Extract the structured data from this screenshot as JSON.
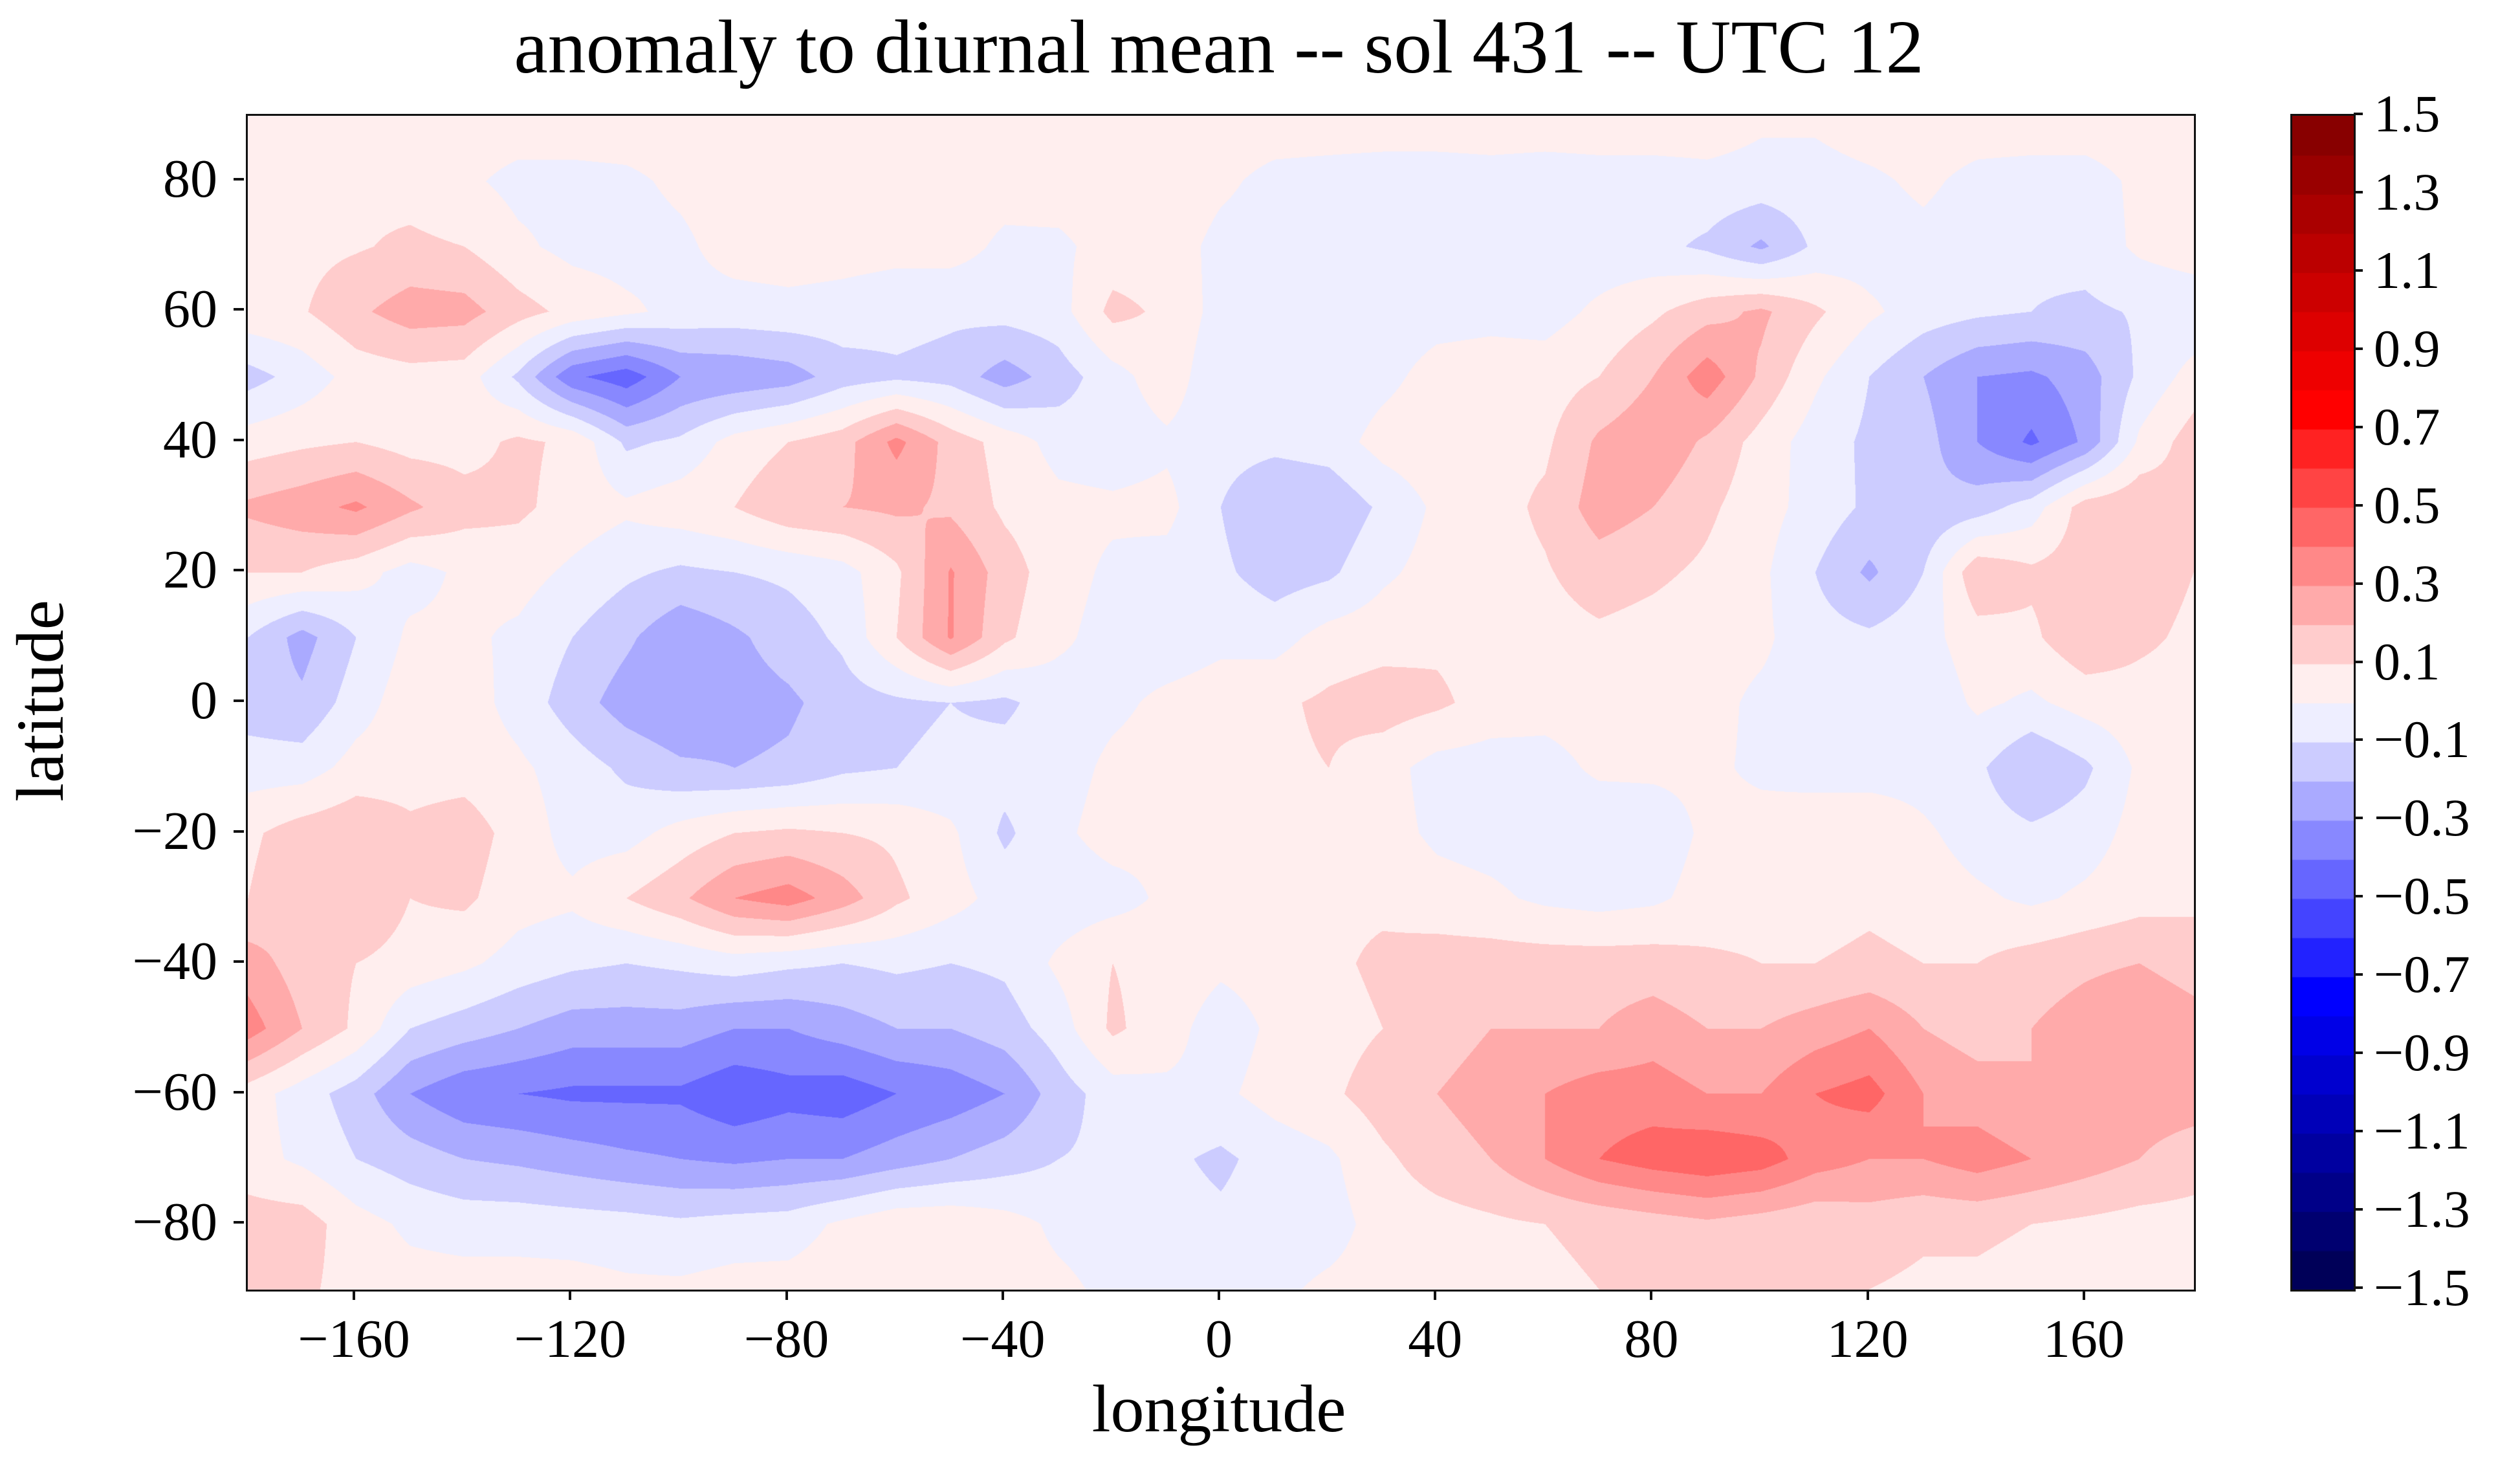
{
  "title": "anomaly to diurnal mean -- sol 431 -- UTC 12",
  "axes": {
    "xlabel": "longitude",
    "ylabel": "latitude",
    "xlim": [
      -180,
      180
    ],
    "ylim": [
      -90,
      90
    ],
    "x_tick_values": [
      -160,
      -120,
      -80,
      -40,
      0,
      40,
      80,
      120,
      160
    ],
    "x_tick_labels": [
      "−160",
      "−120",
      "−80",
      "−40",
      "0",
      "40",
      "80",
      "120",
      "160"
    ],
    "y_tick_values": [
      80,
      60,
      40,
      20,
      0,
      -20,
      -40,
      -60,
      -80
    ],
    "y_tick_labels": [
      "80",
      "60",
      "40",
      "20",
      "0",
      "−20",
      "−40",
      "−60",
      "−80"
    ]
  },
  "colorbar": {
    "orientation": "vertical",
    "position": "right",
    "min": -1.5,
    "max": 1.5,
    "band_step": 0.1,
    "colormap": "seismic",
    "tick_values": [
      1.5,
      1.3,
      1.1,
      0.9,
      0.7,
      0.5,
      0.3,
      0.1,
      -0.1,
      -0.3,
      -0.5,
      -0.7,
      -0.9,
      -1.1,
      -1.3,
      -1.5
    ],
    "tick_labels": [
      "1.5",
      "1.3",
      "1.1",
      "0.9",
      "0.7",
      "0.5",
      "0.3",
      "0.1",
      "−0.1",
      "−0.3",
      "−0.5",
      "−0.7",
      "−0.9",
      "−1.1",
      "−1.3",
      "−1.5"
    ],
    "top_color": "#880000",
    "mid_color": "#ffffff",
    "bottom_color": "#00004d"
  },
  "chart_data": {
    "type": "heatmap",
    "subtype": "filled-contour",
    "title": "anomaly to diurnal mean -- sol 431 -- UTC 12",
    "xlabel": "longitude",
    "ylabel": "latitude",
    "xlim": [
      -180,
      180
    ],
    "ylim": [
      -90,
      90
    ],
    "grid": false,
    "legend_position": "right-colorbar",
    "colormap": "seismic",
    "levels": {
      "min": -1.5,
      "max": 1.5,
      "step": 0.1
    },
    "x": [
      -180,
      -170,
      -160,
      -150,
      -140,
      -130,
      -120,
      -110,
      -100,
      -90,
      -80,
      -70,
      -60,
      -50,
      -40,
      -30,
      -20,
      -10,
      0,
      10,
      20,
      30,
      40,
      50,
      60,
      70,
      80,
      90,
      100,
      110,
      120,
      130,
      140,
      150,
      160,
      170,
      180
    ],
    "y": [
      90,
      80,
      70,
      60,
      50,
      40,
      30,
      20,
      10,
      0,
      -10,
      -20,
      -30,
      -40,
      -50,
      -60,
      -70,
      -80,
      -90
    ],
    "values": [
      [
        0.06,
        0.06,
        0.06,
        0.06,
        0.06,
        0.06,
        0.06,
        0.06,
        0.06,
        0.06,
        0.06,
        0.06,
        0.06,
        0.06,
        0.06,
        0.06,
        0.06,
        0.06,
        0.06,
        0.06,
        0.06,
        0.06,
        0.06,
        0.06,
        0.06,
        0.06,
        0.06,
        0.06,
        0.02,
        0.02,
        0.06,
        0.06,
        0.06,
        0.06,
        0.06,
        0.06,
        0.06
      ],
      [
        0.07,
        0.07,
        0.08,
        0.06,
        0.02,
        -0.03,
        -0.03,
        -0.02,
        0.02,
        0.05,
        0.06,
        0.05,
        0.05,
        0.06,
        0.04,
        0.05,
        0.06,
        0.07,
        0.02,
        -0.03,
        -0.04,
        -0.05,
        -0.05,
        -0.04,
        -0.05,
        -0.04,
        -0.04,
        -0.03,
        -0.04,
        -0.04,
        -0.02,
        0.02,
        -0.03,
        -0.04,
        -0.04,
        0.02,
        0.07
      ],
      [
        0.06,
        0.07,
        0.09,
        0.12,
        0.1,
        0.02,
        -0.03,
        -0.04,
        -0.02,
        0.04,
        0.05,
        0.04,
        0.03,
        0.04,
        -0.02,
        -0.02,
        0.04,
        0.05,
        -0.03,
        -0.05,
        -0.05,
        -0.06,
        -0.05,
        -0.06,
        -0.05,
        -0.06,
        -0.07,
        -0.12,
        -0.22,
        -0.08,
        -0.05,
        -0.03,
        -0.06,
        -0.08,
        -0.06,
        0.02,
        0.06
      ],
      [
        0.07,
        0.09,
        0.18,
        0.25,
        0.24,
        0.14,
        0.07,
        0.02,
        -0.03,
        -0.04,
        -0.03,
        -0.04,
        -0.06,
        -0.08,
        -0.06,
        -0.04,
        0.13,
        0.08,
        -0.04,
        -0.09,
        -0.1,
        -0.06,
        -0.04,
        -0.03,
        -0.04,
        0.02,
        0.08,
        0.16,
        0.22,
        0.12,
        0.02,
        -0.05,
        -0.08,
        -0.1,
        -0.12,
        -0.09,
        -0.08
      ],
      [
        -0.14,
        -0.06,
        0.04,
        0.06,
        0.05,
        -0.12,
        -0.38,
        -0.46,
        -0.3,
        -0.28,
        -0.25,
        -0.15,
        -0.12,
        -0.14,
        -0.25,
        -0.15,
        -0.04,
        0.06,
        -0.08,
        -0.1,
        -0.08,
        -0.03,
        0.04,
        0.05,
        0.05,
        0.1,
        0.2,
        0.36,
        0.18,
        0.02,
        -0.1,
        -0.2,
        -0.3,
        -0.32,
        -0.25,
        -0.08,
        0.04
      ],
      [
        0.05,
        0.08,
        0.1,
        0.06,
        0.06,
        0.12,
        0.08,
        -0.12,
        -0.08,
        0.04,
        0.1,
        0.16,
        0.33,
        0.16,
        0.06,
        -0.04,
        -0.06,
        -0.02,
        -0.06,
        -0.07,
        -0.05,
        0.04,
        0.07,
        0.07,
        0.08,
        0.22,
        0.28,
        0.18,
        0.06,
        -0.05,
        -0.12,
        -0.16,
        -0.3,
        -0.42,
        -0.28,
        0.02,
        0.15
      ],
      [
        0.22,
        0.26,
        0.32,
        0.22,
        0.14,
        0.12,
        0.06,
        0.02,
        0.06,
        0.1,
        0.18,
        0.2,
        0.22,
        0.18,
        0.08,
        0.03,
        0.02,
        0.03,
        -0.1,
        -0.2,
        -0.18,
        -0.08,
        0.02,
        0.06,
        0.12,
        0.25,
        0.2,
        0.12,
        0.04,
        -0.04,
        -0.12,
        -0.18,
        -0.15,
        -0.05,
        0.15,
        0.18,
        0.12
      ],
      [
        0.1,
        0.1,
        0.04,
        -0.04,
        0.02,
        0.04,
        -0.02,
        -0.08,
        -0.12,
        -0.1,
        -0.08,
        -0.04,
        0.08,
        0.31,
        0.15,
        0.04,
        -0.02,
        -0.04,
        -0.08,
        -0.15,
        -0.12,
        -0.02,
        0.04,
        0.06,
        0.09,
        0.15,
        0.12,
        0.08,
        0.02,
        -0.1,
        -0.22,
        -0.1,
        0.18,
        0.12,
        0.15,
        0.15,
        0.1
      ],
      [
        -0.1,
        -0.24,
        -0.1,
        0.02,
        0.02,
        -0.02,
        -0.1,
        -0.18,
        -0.28,
        -0.22,
        -0.15,
        -0.08,
        0.1,
        0.31,
        0.12,
        0.02,
        -0.04,
        -0.05,
        -0.02,
        -0.04,
        0.04,
        0.06,
        0.08,
        0.06,
        0.06,
        0.08,
        0.06,
        0.04,
        0.02,
        -0.06,
        -0.08,
        -0.04,
        0.06,
        0.08,
        0.18,
        0.12,
        0.08
      ],
      [
        -0.15,
        -0.18,
        -0.05,
        0.06,
        0.05,
        -0.04,
        -0.15,
        -0.25,
        -0.3,
        -0.25,
        -0.22,
        -0.15,
        -0.12,
        -0.1,
        -0.12,
        -0.05,
        -0.02,
        0.02,
        0.04,
        0.08,
        0.12,
        0.15,
        0.12,
        0.06,
        0.04,
        0.05,
        0.04,
        0.03,
        -0.02,
        -0.04,
        -0.04,
        -0.08,
        0.02,
        -0.02,
        0.04,
        0.06,
        0.06
      ],
      [
        -0.05,
        -0.05,
        0.04,
        0.06,
        0.06,
        0.02,
        -0.05,
        -0.12,
        -0.18,
        -0.2,
        -0.18,
        -0.12,
        -0.1,
        -0.08,
        -0.06,
        -0.04,
        0.02,
        0.04,
        0.06,
        0.08,
        0.1,
        0.04,
        -0.04,
        -0.05,
        -0.04,
        0.02,
        0.02,
        0.02,
        -0.02,
        -0.05,
        -0.06,
        -0.05,
        -0.08,
        -0.2,
        -0.12,
        0.02,
        0.04
      ],
      [
        0.08,
        0.15,
        0.18,
        0.12,
        0.15,
        0.06,
        -0.04,
        -0.04,
        0.04,
        0.1,
        0.12,
        0.1,
        0.08,
        0.02,
        -0.12,
        -0.02,
        0.04,
        0.02,
        0.02,
        0.04,
        0.06,
        0.04,
        -0.02,
        -0.04,
        -0.06,
        -0.08,
        -0.06,
        0.02,
        0.04,
        0.08,
        0.1,
        0.02,
        -0.05,
        -0.08,
        -0.05,
        0.04,
        0.06
      ],
      [
        0.1,
        0.18,
        0.2,
        0.1,
        0.12,
        0.04,
        0.02,
        0.1,
        0.18,
        0.3,
        0.35,
        0.25,
        0.12,
        0.04,
        -0.04,
        -0.06,
        -0.04,
        0.02,
        0.04,
        0.06,
        0.08,
        0.08,
        0.04,
        0.02,
        -0.02,
        -0.04,
        -0.02,
        0.04,
        0.06,
        0.06,
        0.08,
        0.06,
        0.02,
        -0.02,
        0.02,
        0.06,
        0.08
      ],
      [
        0.25,
        0.15,
        0.1,
        0.06,
        0.02,
        -0.04,
        -0.08,
        -0.1,
        -0.08,
        -0.05,
        -0.08,
        -0.1,
        -0.08,
        -0.1,
        -0.08,
        0.02,
        0.1,
        0.06,
        0.02,
        0.04,
        0.08,
        0.12,
        0.15,
        0.15,
        0.15,
        0.15,
        0.15,
        0.12,
        0.1,
        0.1,
        0.12,
        0.1,
        0.1,
        0.15,
        0.18,
        0.2,
        0.15
      ],
      [
        0.35,
        0.2,
        0.08,
        -0.1,
        -0.15,
        -0.2,
        -0.25,
        -0.25,
        -0.25,
        -0.3,
        -0.3,
        -0.25,
        -0.2,
        -0.2,
        -0.15,
        -0.05,
        0.12,
        0.04,
        -0.05,
        0.02,
        0.06,
        0.1,
        0.15,
        0.2,
        0.2,
        0.2,
        0.25,
        0.2,
        0.2,
        0.25,
        0.3,
        0.2,
        0.15,
        0.2,
        0.25,
        0.3,
        0.25
      ],
      [
        0.05,
        -0.05,
        -0.15,
        -0.3,
        -0.38,
        -0.4,
        -0.42,
        -0.42,
        -0.42,
        -0.48,
        -0.44,
        -0.46,
        -0.4,
        -0.36,
        -0.3,
        -0.15,
        -0.05,
        -0.02,
        -0.02,
        0.04,
        0.08,
        0.15,
        0.2,
        0.25,
        0.3,
        0.35,
        0.35,
        0.3,
        0.3,
        0.4,
        0.44,
        0.3,
        0.25,
        0.2,
        0.2,
        0.25,
        0.25
      ],
      [
        0.04,
        -0.02,
        -0.1,
        -0.15,
        -0.2,
        -0.22,
        -0.25,
        -0.28,
        -0.3,
        -0.32,
        -0.3,
        -0.3,
        -0.25,
        -0.2,
        -0.15,
        -0.1,
        -0.08,
        -0.08,
        -0.12,
        -0.06,
        -0.02,
        0.08,
        0.15,
        0.2,
        0.3,
        0.4,
        0.45,
        0.48,
        0.45,
        0.35,
        0.3,
        0.3,
        0.35,
        0.3,
        0.25,
        0.2,
        0.15
      ],
      [
        0.15,
        0.15,
        0.04,
        -0.02,
        -0.04,
        -0.04,
        -0.05,
        -0.06,
        -0.08,
        -0.06,
        -0.05,
        0.02,
        0.08,
        0.08,
        0.04,
        -0.02,
        -0.04,
        -0.06,
        -0.08,
        -0.05,
        -0.04,
        0.04,
        0.06,
        0.08,
        0.1,
        0.12,
        0.15,
        0.18,
        0.15,
        0.12,
        0.15,
        0.12,
        0.12,
        0.1,
        0.08,
        0.06,
        0.06
      ],
      [
        0.12,
        0.12,
        0.06,
        0.04,
        0.04,
        0.04,
        0.04,
        0.02,
        0.02,
        0.04,
        0.04,
        0.06,
        0.08,
        0.06,
        0.04,
        0.02,
        -0.02,
        -0.02,
        -0.03,
        -0.02,
        0.02,
        0.04,
        0.06,
        0.06,
        0.08,
        0.1,
        0.12,
        0.12,
        0.12,
        0.1,
        0.1,
        0.08,
        0.08,
        0.06,
        0.06,
        0.06,
        0.06
      ]
    ]
  }
}
